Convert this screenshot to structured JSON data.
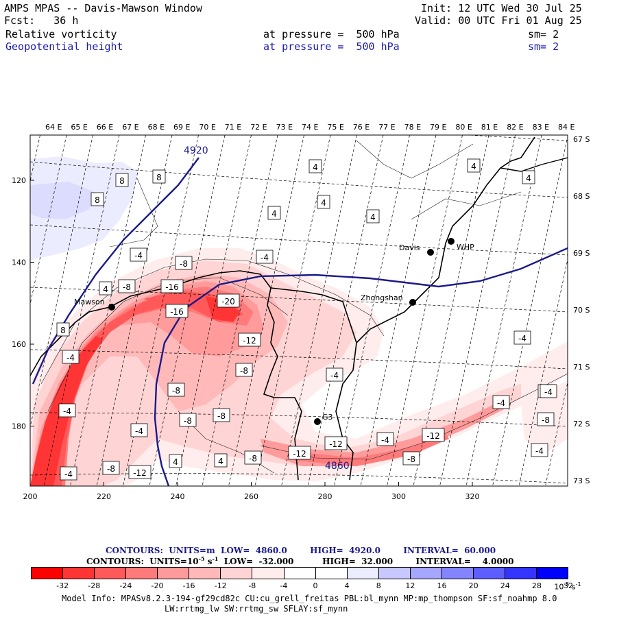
{
  "header": {
    "title": "AMPS MPAS -- Davis-Mawson Window",
    "init": "Init: 12 UTC Wed 30 Jul 25",
    "fcst": "Fcst:   36 h",
    "valid": "Valid: 00 UTC Fri 01 Aug 25",
    "field1": {
      "name": "Relative vorticity",
      "pressure": "at pressure =  500 hPa",
      "sm": "sm= 2"
    },
    "field2": {
      "name": "Geopotential height",
      "pressure": "at pressure =  500 hPa",
      "sm": "sm= 2"
    }
  },
  "map": {
    "lon_labels": [
      "64 E",
      "65 E",
      "66 E",
      "67 E",
      "68 E",
      "69 E",
      "70 E",
      "71 E",
      "72 E",
      "73 E",
      "74 E",
      "75 E",
      "76 E",
      "77 E",
      "78 E",
      "79 E",
      "80 E",
      "81 E",
      "82 E",
      "83 E",
      "84 E"
    ],
    "lat_labels": [
      "67 S",
      "68 S",
      "69 S",
      "70 S",
      "71 S",
      "72 S",
      "73 S"
    ],
    "x_ticks": [
      "200",
      "220",
      "240",
      "260",
      "280",
      "300",
      "320"
    ],
    "y_ticks": [
      "120",
      "140",
      "160",
      "180"
    ],
    "stations": [
      {
        "name": "Mawson"
      },
      {
        "name": "Davis"
      },
      {
        "name": "WHP"
      },
      {
        "name": "Zhongshan"
      },
      {
        "name": "G3"
      }
    ],
    "height_contour_labels": [
      "4920",
      "4860"
    ],
    "vorticity_labels": [
      "8",
      "8",
      "8",
      "4",
      "4",
      "4",
      "4",
      "4",
      "4",
      "-4",
      "-8",
      "-16",
      "-20",
      "-12",
      "-8",
      "-8",
      "-8",
      "-8",
      "-4",
      "4",
      "8",
      "-16",
      "-4",
      "-8",
      "-4",
      "-4",
      "-12",
      "-8",
      "-4",
      "-4",
      "-4",
      "-8",
      "-4",
      "-12",
      "-8",
      "-12",
      "-4",
      "4",
      "4",
      "-4",
      "-4",
      "-8",
      "-12",
      "-4"
    ]
  },
  "legend": {
    "contours1": "CONTOURS:  UNITS=m  LOW=  4860.0        HIGH=  4920.0        INTERVAL=  60.000",
    "contours2_a": "CONTOURS:  UNITS=10",
    "contours2_exp": "-5",
    "contours2_b": " s",
    "contours2_exp2": "-1",
    "contours2_c": "  LOW=  -32.000          HIGH=  32.000        INTERVAL=    4.0000",
    "colorbar_colors": [
      "#ff0000",
      "#ff3434",
      "#ff5959",
      "#ff7b7b",
      "#ff9b9b",
      "#ffb9b9",
      "#ffd4d4",
      "#ffecec",
      "#ffffff",
      "#ffffff",
      "#ececff",
      "#c8c8ff",
      "#a6a6ff",
      "#8484ff",
      "#5e5eff",
      "#3434ff",
      "#0000ff"
    ],
    "colorbar_labels": [
      "-32",
      "-28",
      "-24",
      "-20",
      "-16",
      "-12",
      "-8",
      "-4",
      "0",
      "4",
      "8",
      "12",
      "16",
      "20",
      "24",
      "28",
      "32"
    ],
    "colorbar_unit": "10",
    "colorbar_unit_exp": "-5",
    "colorbar_unit_tail": " s",
    "colorbar_unit_exp2": "-1"
  },
  "model_info": {
    "line1": "Model Info: MPASv8.2.3-194-gf29cd82c CU:cu_grell_freitas PBL:bl_mynn MP:mp_thompson SF:sf_noahmp 8.0",
    "line2": "LW:rrtmg_lw SW:rrtmg_sw SFLAY:sf_mynn"
  }
}
